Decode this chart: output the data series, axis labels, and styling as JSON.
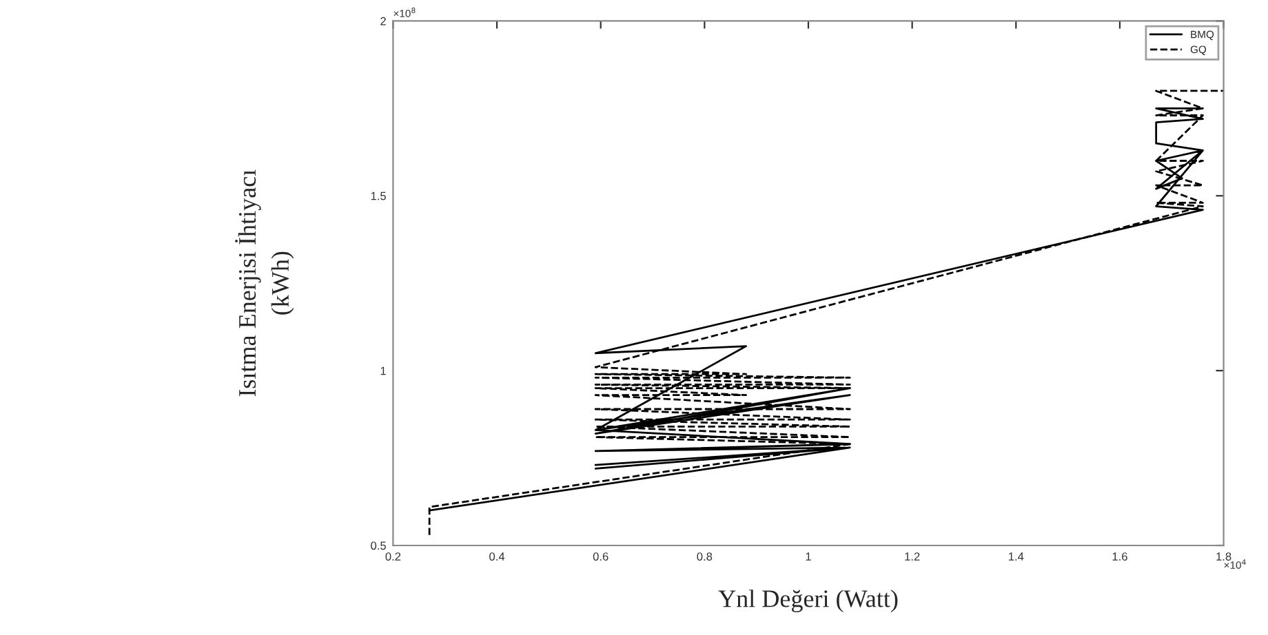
{
  "chart_data": {
    "type": "line",
    "xlabel": "Ynl Değeri (Watt)",
    "ylabel": "Isıtma Enerjisi İhtiyacı\n(kWh)",
    "xlim": [
      0.2,
      1.8
    ],
    "ylim": [
      0.5,
      2
    ],
    "xticks": [
      0.2,
      0.4,
      0.6,
      0.8,
      1,
      1.2,
      1.4,
      1.6,
      1.8
    ],
    "yticks": [
      0.5,
      1,
      1.5,
      2
    ],
    "annotations": [
      "×10$^{4}$",
      "×10$^{8}$"
    ],
    "legend": "top right",
    "grid": false,
    "series": [
      {
        "name": "BMQ",
        "color": "#000000",
        "line_style": "solid",
        "x": [
          0.27,
          1.08,
          0.59,
          1.08,
          0.59,
          1.08,
          0.59,
          1.08,
          0.59,
          1.08,
          0.59,
          1.08,
          0.59,
          0.88,
          0.59,
          1.76,
          1.67,
          1.76,
          1.67,
          1.72,
          1.67,
          1.76,
          1.67,
          1.67,
          1.76,
          1.67,
          1.76
        ],
        "values": [
          0.6,
          0.78,
          0.72,
          0.78,
          0.73,
          0.78,
          0.77,
          0.79,
          0.83,
          0.95,
          0.82,
          0.93,
          0.83,
          1.07,
          1.05,
          1.46,
          1.47,
          1.63,
          1.52,
          1.55,
          1.6,
          1.63,
          1.65,
          1.71,
          1.72,
          1.75,
          1.75
        ]
      },
      {
        "name": "GQ",
        "color": "#000000",
        "line_style": "dashed",
        "x": [
          0.27,
          0.27,
          1.08,
          0.59,
          1.08,
          0.59,
          1.08,
          0.59,
          1.08,
          0.59,
          1.08,
          0.59,
          0.88,
          0.59,
          1.08,
          0.59,
          1.08,
          0.59,
          1.08,
          0.59,
          0.88,
          0.59,
          1.76,
          1.67,
          1.76,
          1.67,
          1.76,
          1.67,
          1.76,
          1.67,
          1.76,
          1.67,
          1.76,
          1.67,
          1.8
        ],
        "values": [
          0.53,
          0.61,
          0.79,
          0.81,
          0.81,
          0.84,
          0.84,
          0.86,
          0.86,
          0.89,
          0.89,
          0.93,
          0.93,
          0.95,
          0.95,
          0.96,
          0.96,
          0.98,
          0.98,
          0.99,
          0.99,
          1.01,
          1.47,
          1.48,
          1.48,
          1.53,
          1.53,
          1.57,
          1.6,
          1.6,
          1.73,
          1.73,
          1.75,
          1.8,
          1.8
        ]
      }
    ]
  }
}
